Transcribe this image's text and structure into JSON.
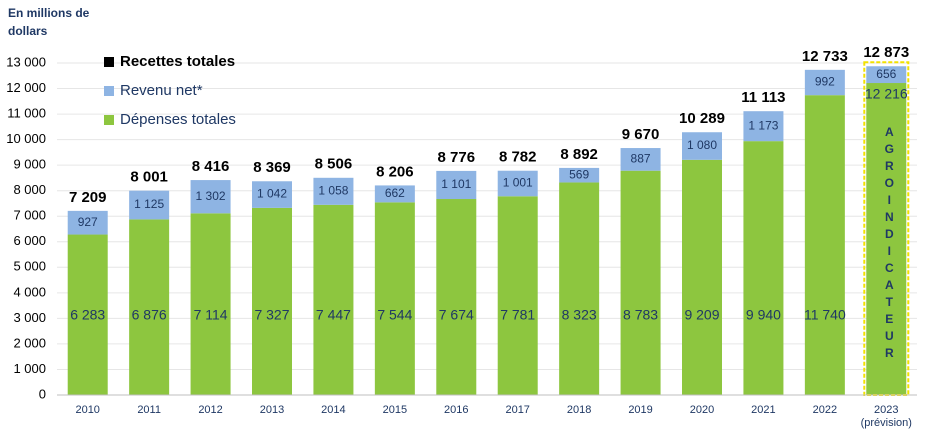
{
  "chart_data": {
    "type": "stacked-bar",
    "y_label": "En millions de\ndollars",
    "categories": [
      "2010",
      "2011",
      "2012",
      "2013",
      "2014",
      "2015",
      "2016",
      "2017",
      "2018",
      "2019",
      "2020",
      "2021",
      "2022",
      "2023\n(prévision)"
    ],
    "series": [
      {
        "name": "Dépenses totales",
        "color": "#8dc63f",
        "values": [
          6283,
          6876,
          7114,
          7327,
          7447,
          7544,
          7674,
          7781,
          8323,
          8783,
          9209,
          9940,
          11740,
          12216
        ],
        "value_labels": [
          "6 283",
          "6 876",
          "7 114",
          "7 327",
          "7 447",
          "7 544",
          "7 674",
          "7 781",
          "8 323",
          "8 783",
          "9 209",
          "9 940",
          "11 740",
          "12 216"
        ]
      },
      {
        "name": "Revenu net*",
        "color": "#8eb4e3",
        "values": [
          927,
          1125,
          1302,
          1042,
          1058,
          662,
          1101,
          1001,
          569,
          887,
          1080,
          1173,
          992,
          656
        ],
        "value_labels": [
          "927",
          "1 125",
          "1 302",
          "1 042",
          "1 058",
          "662",
          "1 101",
          "1 001",
          "569",
          "887",
          "1 080",
          "1 173",
          "992",
          "656"
        ]
      }
    ],
    "totals": {
      "name": "Recettes totales",
      "color": "#000000",
      "values": [
        7209,
        8001,
        8416,
        8369,
        8506,
        8206,
        8776,
        8782,
        8892,
        9670,
        10289,
        11113,
        12733,
        12873
      ],
      "value_labels": [
        "7 209",
        "8 001",
        "8 416",
        "8 369",
        "8 506",
        "8 206",
        "8 776",
        "8 782",
        "8 892",
        "9 670",
        "10 289",
        "11 113",
        "12 733",
        "12 873"
      ]
    },
    "annotation": "AGROINDICATEUR",
    "ylim": [
      0,
      13000
    ],
    "yticks": [
      0,
      {
        "value": 1000,
        "label": "1 000"
      },
      {
        "value": 2000,
        "label": "2 000"
      },
      {
        "value": 3000,
        "label": "3 000"
      },
      {
        "value": 4000,
        "label": "4 000"
      },
      {
        "value": 5000,
        "label": "5 000"
      },
      {
        "value": 6000,
        "label": "6 000"
      },
      {
        "value": 7000,
        "label": "7 000"
      },
      {
        "value": 8000,
        "label": "8 000"
      },
      {
        "value": 9000,
        "label": "9 000"
      },
      {
        "value": 10000,
        "label": "10 000"
      },
      {
        "value": 11000,
        "label": "11 000"
      },
      {
        "value": 12000,
        "label": "12 000"
      },
      {
        "value": 13000,
        "label": "13 000"
      }
    ],
    "grid": true
  }
}
